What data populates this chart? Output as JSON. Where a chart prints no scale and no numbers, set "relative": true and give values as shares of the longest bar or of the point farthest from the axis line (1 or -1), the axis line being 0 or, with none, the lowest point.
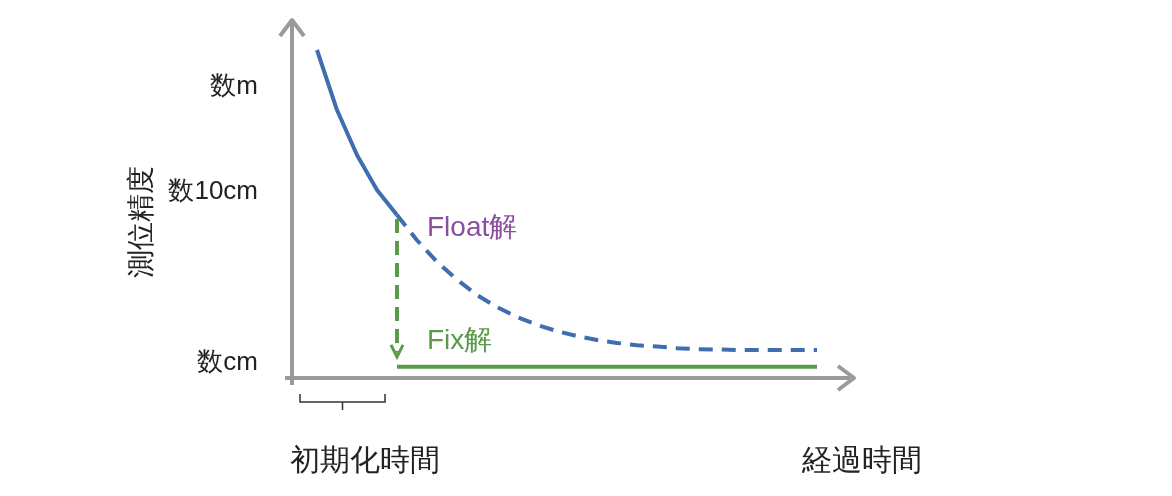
{
  "chart_data": {
    "type": "line",
    "relative": true,
    "xlabel": "経過時間",
    "ylabel": "測位精度",
    "annotations": [
      "初期化時間",
      "数m",
      "数10cm",
      "数cm"
    ],
    "categories": [
      null,
      null,
      null,
      null,
      null,
      null,
      null,
      null,
      null,
      null,
      null,
      null,
      null,
      null,
      null,
      null,
      null,
      null,
      null,
      null,
      null,
      null,
      null,
      null,
      null,
      null
    ],
    "series": [
      {
        "color": "#3f6db0",
        "line_style": "solid",
        "values": [
          1.0,
          0.817,
          0.68,
          0.573,
          0.497,
          null,
          null,
          null,
          null,
          null,
          null,
          null,
          null,
          null,
          null,
          null,
          null,
          null,
          null,
          null,
          null,
          null,
          null,
          null,
          null,
          null
        ]
      },
      {
        "name": "Float解",
        "color": "#3f6db0",
        "line_style": "dashed",
        "values": [
          null,
          null,
          null,
          null,
          0.497,
          0.42,
          0.354,
          0.3,
          0.253,
          0.216,
          0.186,
          0.162,
          0.143,
          0.128,
          0.116,
          0.107,
          0.1,
          0.096,
          0.091,
          0.088,
          0.087,
          0.085,
          0.085,
          0.085,
          0.085,
          0.085
        ]
      },
      {
        "name": "Fix解",
        "color": "#5a9a4a",
        "line_style": "solid",
        "values": [
          null,
          null,
          null,
          null,
          0.034,
          0.034,
          0.034,
          0.034,
          0.034,
          0.034,
          0.034,
          0.034,
          0.034,
          0.034,
          0.034,
          0.034,
          0.034,
          0.034,
          0.034,
          0.034,
          0.034,
          0.034,
          0.034,
          0.034,
          0.034,
          0.034
        ]
      }
    ]
  }
}
